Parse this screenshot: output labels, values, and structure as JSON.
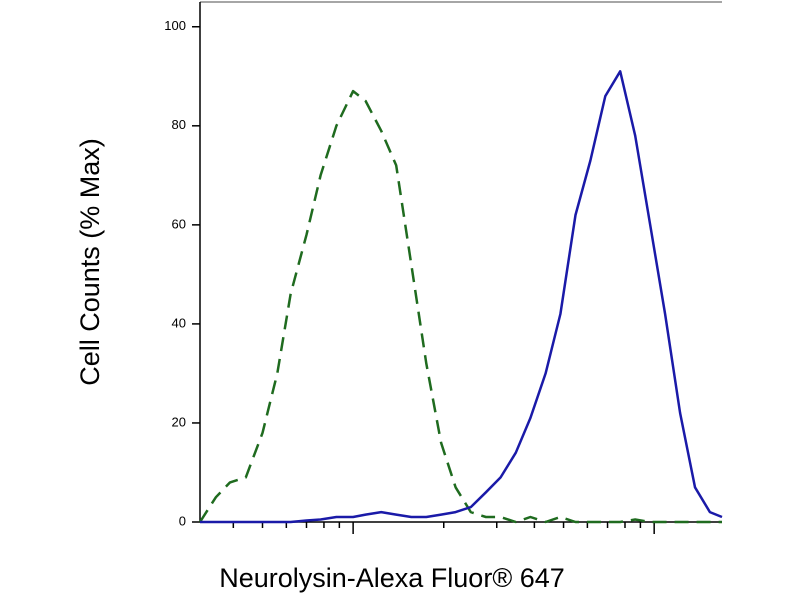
{
  "chart_data": {
    "type": "line",
    "xlabel": "Neurolysin-Alexa Fluor® 647",
    "ylabel": "Cell Counts (% Max)",
    "xscale": "log",
    "xlim": [
      31,
      1680
    ],
    "xticks": [
      40,
      50,
      60,
      70,
      80,
      90,
      100,
      200,
      300,
      400,
      500,
      600,
      700,
      800,
      900,
      1000
    ],
    "ylim": [
      0,
      105
    ],
    "yticks": [
      0,
      20,
      40,
      60,
      80,
      100
    ],
    "x": [
      31,
      35,
      39,
      44,
      50,
      56,
      62,
      70,
      78,
      88,
      100,
      110,
      124,
      139,
      156,
      175,
      196,
      219,
      246,
      276,
      309,
      347,
      388,
      436,
      488,
      548,
      614,
      688,
      771,
      865,
      970,
      1087,
      1219,
      1367,
      1532,
      1680
    ],
    "series": [
      {
        "color": "#1f6b1f",
        "dashed": true,
        "values": [
          0,
          5,
          8,
          9,
          18,
          30,
          46,
          58,
          70,
          80,
          87,
          85,
          79,
          72,
          52,
          32,
          16,
          7,
          2,
          1,
          1,
          0,
          1,
          0,
          1,
          0,
          0,
          0,
          0,
          0.5,
          0,
          0,
          0,
          0,
          0,
          0
        ]
      },
      {
        "color": "#1a1aa8",
        "dashed": false,
        "values": [
          0,
          0,
          0,
          0,
          0,
          0,
          0,
          0.3,
          0.5,
          1,
          1,
          1.5,
          2,
          1.5,
          1,
          1,
          1.5,
          2,
          3,
          6,
          9,
          14,
          21,
          30,
          42,
          62,
          73,
          86,
          91,
          78,
          60,
          42,
          22,
          7,
          2,
          1
        ]
      }
    ]
  }
}
